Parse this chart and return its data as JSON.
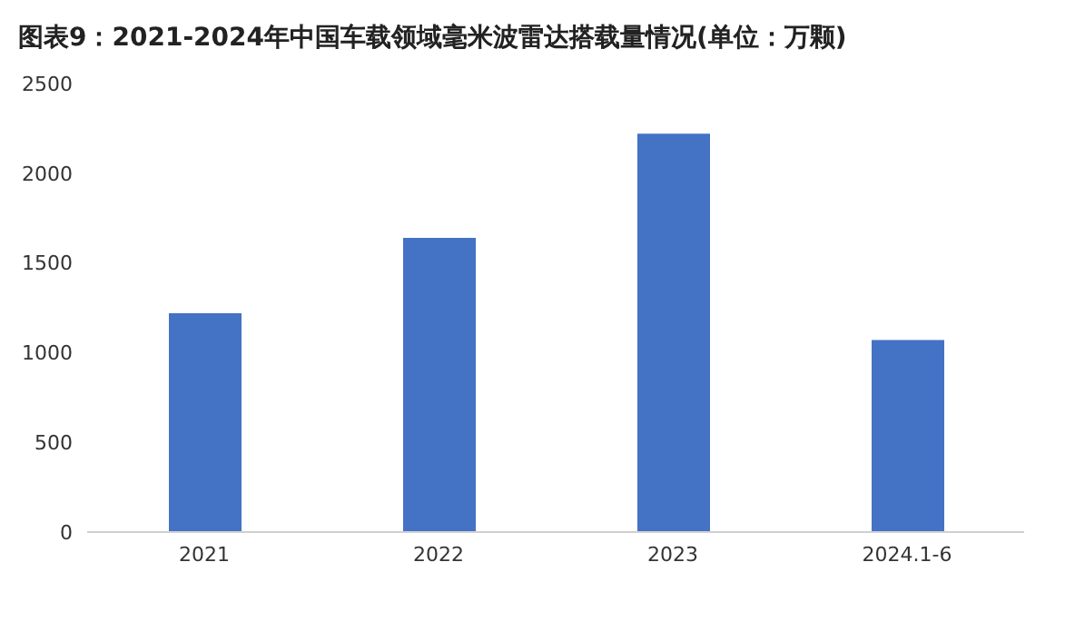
{
  "chart_data": {
    "type": "bar",
    "title": "图表9：2021-2024年中国车载领域毫米波雷达搭载量情况(单位：万颗)",
    "categories": [
      "2021",
      "2022",
      "2023",
      "2024.1-6"
    ],
    "values": [
      1220,
      1640,
      2220,
      1070
    ],
    "color": "#4472c4",
    "ylim": [
      0,
      2500
    ],
    "yticks": [
      0,
      500,
      1000,
      1500,
      2000,
      2500
    ],
    "grid": false
  }
}
